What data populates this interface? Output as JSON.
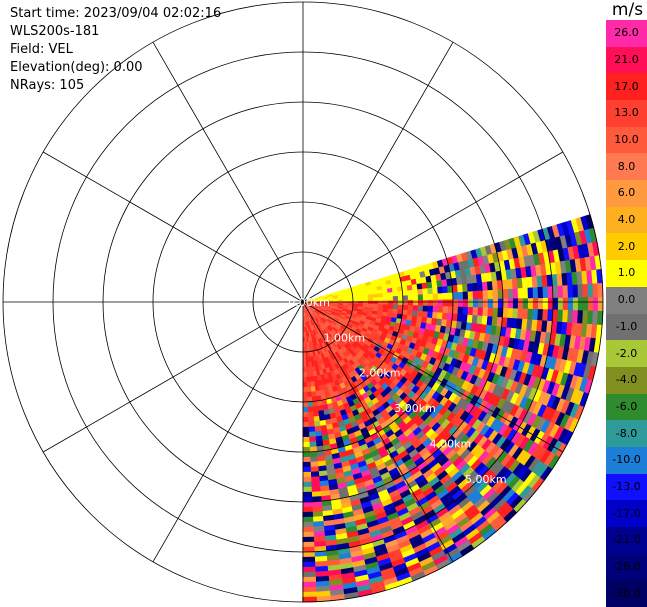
{
  "header": {
    "start_time": "Start time: 2023/09/04 02:02:16",
    "instrument": "WLS200s-181",
    "field": "Field: VEL",
    "elevation": "Elevation(deg): 0.00",
    "nrays": "NRays: 105"
  },
  "colorbar": {
    "unit": "m/s",
    "ticks": [
      "26.0",
      "21.0",
      "17.0",
      "13.0",
      "10.0",
      "8.0",
      "6.0",
      "4.0",
      "2.0",
      "1.0",
      "0.0",
      "-1.0",
      "-2.0",
      "-4.0",
      "-6.0",
      "-8.0",
      "-10.0",
      "-13.0",
      "-17.0",
      "-21.0",
      "-26.0",
      "-30.0"
    ],
    "colors": [
      "#ff2aa8",
      "#ff0f55",
      "#ff2020",
      "#ff3f30",
      "#ff5a3c",
      "#ff7a50",
      "#ff9a40",
      "#ffb020",
      "#ffcc00",
      "#ffff00",
      "#808080",
      "#707070",
      "#a8c838",
      "#809020",
      "#2e8b2e",
      "#2f9a9a",
      "#1e7fd8",
      "#1010ff",
      "#0000c8",
      "#000090",
      "#00007a",
      "#000064"
    ]
  },
  "chart_data": {
    "type": "ppi",
    "field": "VEL",
    "units": "m/s",
    "range_rings_km": [
      1,
      2,
      3,
      4,
      5,
      6
    ],
    "range_labels": [
      "0.00km",
      "1.00km",
      "2.00km",
      "3.00km",
      "4.00km",
      "5.00km"
    ],
    "azimuth_spokes_deg": [
      0,
      30,
      60,
      90,
      120,
      150,
      180,
      210,
      240,
      270,
      300,
      330
    ],
    "scan_sector_deg": [
      73,
      180
    ],
    "max_range_km": 6.0,
    "n_rays": 105,
    "elevation_deg": 0.0,
    "regions": [
      {
        "az_from": 73,
        "az_to": 90,
        "r_from_km": 0.0,
        "r_to_km": 2.2,
        "velocity": 2.5
      },
      {
        "az_from": 90,
        "az_to": 180,
        "r_from_km": 0.0,
        "r_to_km": 2.0,
        "velocity": 12.0
      }
    ]
  }
}
